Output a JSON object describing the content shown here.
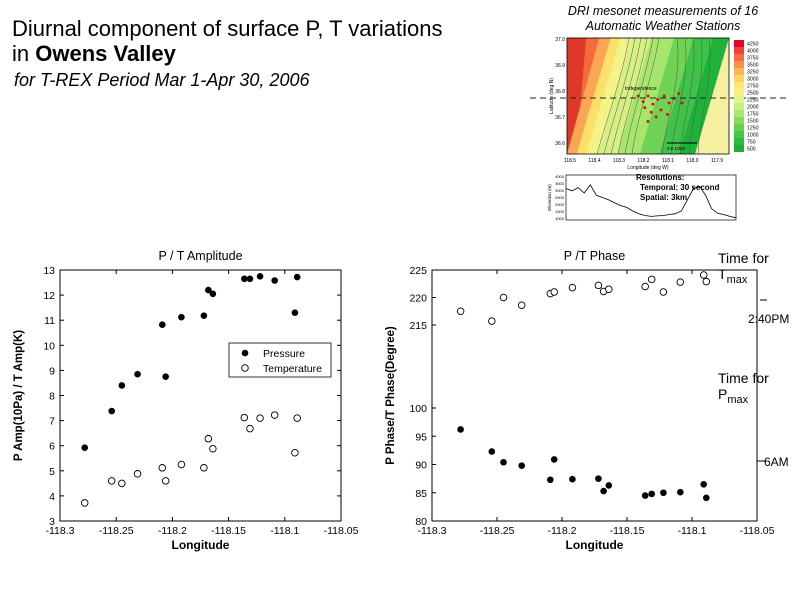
{
  "header": {
    "title_line1": "Diurnal component of surface P, T variations",
    "title_line2_prefix": "in",
    "title_line2_bold": "Owens Valley",
    "subtitle": "for T-REX Period Mar 1-Apr 30, 2006"
  },
  "inset": {
    "caption_line1": "DRI mesonet measurements of 16",
    "caption_line2": "Automatic Weather Stations",
    "map_ylabel": "Latitude (deg N)",
    "map_xlabel": "Longitude (deg W)",
    "map_xticks": [
      "118.5",
      "118.4",
      "118.3",
      "118.2",
      "118.1",
      "118.0",
      "117.9"
    ],
    "map_yticks": [
      "37.0",
      "36.9",
      "36.8",
      "36.7",
      "36.6"
    ],
    "colorbar_labels": [
      "4250",
      "4000",
      "3750",
      "3500",
      "3250",
      "3000",
      "2750",
      "2500",
      "2250",
      "2000",
      "1750",
      "1500",
      "1250",
      "1000",
      "750",
      "500"
    ],
    "colorbar_colors": [
      "#e8002a",
      "#f2403a",
      "#f86a3f",
      "#fb9148",
      "#fdb453",
      "#fed25f",
      "#fee86c",
      "#f5f37c",
      "#e2f484",
      "#c8f07c",
      "#a8e86c",
      "#86dd5c",
      "#64d04e",
      "#44c544",
      "#2dbb3d",
      "#19b236"
    ],
    "place_label": "Independence",
    "scale_label": "0 5 10km",
    "profile_ylabel": "Elevation (m)",
    "profile_yticks": [
      "4000",
      "3500",
      "3000",
      "2500",
      "2000",
      "1500",
      "1000"
    ],
    "resolutions_title": "Resolutions:",
    "resolution_temporal": "Temporal: 30 second",
    "resolution_spatial": "Spatial: 3km"
  },
  "side_labels": {
    "tmax_prefix": "Time for T",
    "tmax_sub": "max",
    "tmax_time": "2:40PM",
    "pmax_prefix": "Time for P",
    "pmax_sub": "max",
    "pmax_time": "6AM"
  },
  "chart_data": [
    {
      "type": "scatter",
      "title": "P / T Amplitude",
      "xlabel": "Longitude",
      "ylabel": "P Amp(10Pa) / T Amp(K)",
      "xlim": [
        -118.3,
        -118.05
      ],
      "ylim": [
        3,
        13
      ],
      "xticks": [
        "-118.3",
        "-118.25",
        "-118.2",
        "-118.15",
        "-118.1",
        "-118.05"
      ],
      "yticks": [
        "3",
        "4",
        "5",
        "6",
        "7",
        "8",
        "9",
        "10",
        "11",
        "12",
        "13"
      ],
      "legend_position": "center-right",
      "series": [
        {
          "name": "Pressure",
          "marker": "filled-circle",
          "points": [
            [
              -118.278,
              5.92
            ],
            [
              -118.254,
              7.38
            ],
            [
              -118.245,
              8.4
            ],
            [
              -118.231,
              8.85
            ],
            [
              -118.209,
              10.82
            ],
            [
              -118.206,
              8.75
            ],
            [
              -118.192,
              11.12
            ],
            [
              -118.172,
              11.18
            ],
            [
              -118.168,
              12.2
            ],
            [
              -118.164,
              12.05
            ],
            [
              -118.136,
              12.65
            ],
            [
              -118.131,
              12.65
            ],
            [
              -118.122,
              12.75
            ],
            [
              -118.109,
              12.58
            ],
            [
              -118.091,
              11.3
            ],
            [
              -118.089,
              12.72
            ]
          ]
        },
        {
          "name": "Temperature",
          "marker": "open-circle",
          "points": [
            [
              -118.278,
              3.72
            ],
            [
              -118.254,
              4.6
            ],
            [
              -118.245,
              4.5
            ],
            [
              -118.231,
              4.88
            ],
            [
              -118.209,
              5.12
            ],
            [
              -118.206,
              4.6
            ],
            [
              -118.192,
              5.25
            ],
            [
              -118.172,
              5.12
            ],
            [
              -118.168,
              6.28
            ],
            [
              -118.164,
              5.88
            ],
            [
              -118.136,
              7.12
            ],
            [
              -118.131,
              6.68
            ],
            [
              -118.122,
              7.1
            ],
            [
              -118.109,
              7.22
            ],
            [
              -118.091,
              5.72
            ],
            [
              -118.089,
              7.1
            ]
          ]
        }
      ]
    },
    {
      "type": "scatter",
      "title": "P /T Phase",
      "xlabel": "Longitude",
      "ylabel": "P Phase/T Phase(Degree)",
      "xlim": [
        -118.3,
        -118.05
      ],
      "ylim_lower": [
        80,
        100
      ],
      "ylim_upper": [
        215,
        225
      ],
      "xticks": [
        "-118.3",
        "-118.25",
        "-118.2",
        "-118.15",
        "-118.1",
        "-118.05"
      ],
      "yticks": [
        "80",
        "85",
        "90",
        "95",
        "100",
        "215",
        "220",
        "225"
      ],
      "series": [
        {
          "marker": "filled-circle",
          "points": [
            [
              -118.278,
              96.2
            ],
            [
              -118.254,
              92.3
            ],
            [
              -118.245,
              90.4
            ],
            [
              -118.231,
              89.8
            ],
            [
              -118.209,
              87.3
            ],
            [
              -118.206,
              90.9
            ],
            [
              -118.192,
              87.4
            ],
            [
              -118.172,
              87.5
            ],
            [
              -118.168,
              85.3
            ],
            [
              -118.164,
              86.3
            ],
            [
              -118.136,
              84.5
            ],
            [
              -118.131,
              84.8
            ],
            [
              -118.122,
              85.0
            ],
            [
              -118.109,
              85.1
            ],
            [
              -118.091,
              86.5
            ],
            [
              -118.089,
              84.1
            ]
          ]
        },
        {
          "marker": "open-circle",
          "points": [
            [
              -118.278,
              217.5
            ],
            [
              -118.254,
              215.7
            ],
            [
              -118.245,
              220.0
            ],
            [
              -118.231,
              218.6
            ],
            [
              -118.209,
              220.7
            ],
            [
              -118.206,
              221.0
            ],
            [
              -118.192,
              221.8
            ],
            [
              -118.172,
              222.2
            ],
            [
              -118.168,
              221.1
            ],
            [
              -118.164,
              221.5
            ],
            [
              -118.136,
              222.0
            ],
            [
              -118.131,
              223.3
            ],
            [
              -118.122,
              221.0
            ],
            [
              -118.109,
              222.8
            ],
            [
              -118.091,
              224.1
            ],
            [
              -118.089,
              222.9
            ]
          ]
        }
      ]
    }
  ]
}
